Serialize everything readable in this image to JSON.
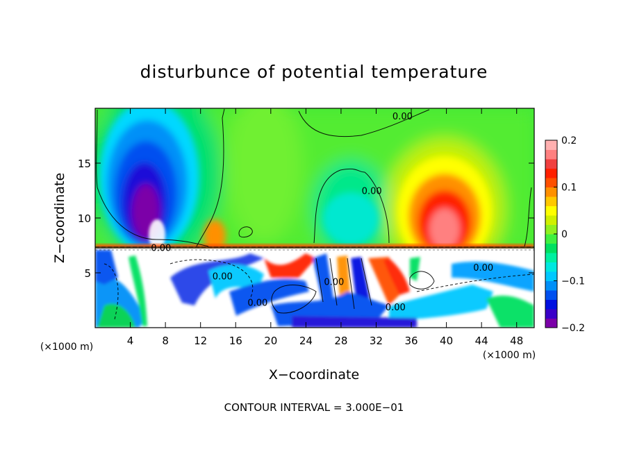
{
  "chart_data": {
    "type": "heatmap",
    "title": "disturbunce of potential temperature",
    "xlabel": "X−coordinate",
    "ylabel": "Z−coordinate",
    "x_unit": "(×1000 m)",
    "z_unit": "(×1000 m)",
    "xlim": [
      0,
      50
    ],
    "ylim": [
      0,
      20
    ],
    "x_ticks": [
      4,
      8,
      12,
      16,
      20,
      24,
      28,
      32,
      36,
      40,
      44,
      48
    ],
    "y_ticks": [
      5,
      10,
      15
    ],
    "colorbar": {
      "range": [
        -0.2,
        0.2
      ],
      "ticks": [
        0.2,
        0.1,
        0,
        -0.1,
        -0.2
      ],
      "tick_labels": [
        "0.2",
        "0.1",
        "0",
        "−0.1",
        "−0.2"
      ],
      "colors": [
        "#7b00a8",
        "#3a00c8",
        "#0010e0",
        "#0050f0",
        "#0090f8",
        "#00c8ff",
        "#00e8e0",
        "#00f0a0",
        "#00e060",
        "#40f040",
        "#90f020",
        "#d0f000",
        "#ffff00",
        "#ffc800",
        "#ff9000",
        "#ff5000",
        "#ff2000",
        "#f04040",
        "#ff8080",
        "#ffb0b0"
      ]
    },
    "contour_labels": [
      {
        "text": "0.00",
        "x": 35,
        "z": 19.3
      },
      {
        "text": "0.00",
        "x": 31.5,
        "z": 12.5
      },
      {
        "text": "0.00",
        "x": 7.5,
        "z": 7.3
      },
      {
        "text": "0.00",
        "x": 14.5,
        "z": 4.7
      },
      {
        "text": "0.00",
        "x": 18.5,
        "z": 2.3
      },
      {
        "text": "0.00",
        "x": 27.2,
        "z": 4.2
      },
      {
        "text": "0.00",
        "x": 34.2,
        "z": 1.9
      },
      {
        "text": "0.00",
        "x": 44.2,
        "z": 5.5
      }
    ],
    "annotation": "CONTOUR INTERVAL = 3.000E−01"
  }
}
